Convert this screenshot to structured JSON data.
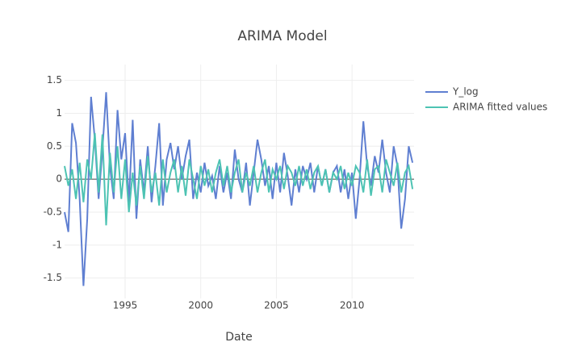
{
  "chart_data": {
    "type": "line",
    "title": "ARIMA Model",
    "x_label": "Date",
    "x": [
      1991.0,
      1991.25,
      1991.5,
      1991.75,
      1992.0,
      1992.25,
      1992.5,
      1992.75,
      1993.0,
      1993.25,
      1993.5,
      1993.75,
      1994.0,
      1994.25,
      1994.5,
      1994.75,
      1995.0,
      1995.25,
      1995.5,
      1995.75,
      1996.0,
      1996.25,
      1996.5,
      1996.75,
      1997.0,
      1997.25,
      1997.5,
      1997.75,
      1998.0,
      1998.25,
      1998.5,
      1998.75,
      1999.0,
      1999.25,
      1999.5,
      1999.75,
      2000.0,
      2000.25,
      2000.5,
      2000.75,
      2001.0,
      2001.25,
      2001.5,
      2001.75,
      2002.0,
      2002.25,
      2002.5,
      2002.75,
      2003.0,
      2003.25,
      2003.5,
      2003.75,
      2004.0,
      2004.25,
      2004.5,
      2004.75,
      2005.0,
      2005.25,
      2005.5,
      2005.75,
      2006.0,
      2006.25,
      2006.5,
      2006.75,
      2007.0,
      2007.25,
      2007.5,
      2007.75,
      2008.0,
      2008.25,
      2008.5,
      2008.75,
      2009.0,
      2009.25,
      2009.5,
      2009.75,
      2010.0,
      2010.25,
      2010.5,
      2010.75,
      2011.0,
      2011.25,
      2011.5,
      2011.75,
      2012.0,
      2012.25,
      2012.5,
      2012.75,
      2013.0,
      2013.25,
      2013.5,
      2013.75,
      2014.0
    ],
    "series": [
      {
        "name": "Y_log",
        "color": "#5f7fd1",
        "values": [
          -0.5,
          -0.8,
          0.85,
          0.55,
          -0.3,
          -1.62,
          -0.6,
          1.25,
          0.6,
          -0.3,
          0.45,
          1.32,
          0.2,
          -0.3,
          1.05,
          0.3,
          0.7,
          -0.35,
          0.9,
          -0.6,
          0.3,
          -0.2,
          0.5,
          -0.35,
          0.2,
          0.85,
          -0.4,
          0.3,
          0.55,
          0.15,
          0.5,
          0.0,
          0.35,
          0.6,
          -0.3,
          0.1,
          -0.2,
          0.25,
          -0.1,
          0.05,
          -0.3,
          0.2,
          -0.2,
          0.1,
          -0.3,
          0.45,
          0.0,
          -0.2,
          0.25,
          -0.4,
          0.1,
          0.6,
          0.3,
          -0.1,
          0.2,
          -0.3,
          0.25,
          -0.2,
          0.4,
          0.05,
          -0.4,
          0.15,
          -0.2,
          0.2,
          0.0,
          0.25,
          -0.2,
          0.2,
          -0.1,
          0.15,
          -0.2,
          0.1,
          0.2,
          -0.2,
          0.15,
          -0.3,
          0.1,
          -0.6,
          0.0,
          0.88,
          0.2,
          -0.1,
          0.35,
          0.1,
          0.6,
          0.1,
          -0.2,
          0.5,
          0.2,
          -0.75,
          -0.3,
          0.5,
          0.25
        ]
      },
      {
        "name": "ARIMA fitted values",
        "color": "#4dc3b3",
        "values": [
          0.2,
          -0.1,
          0.15,
          -0.3,
          0.25,
          -0.35,
          0.3,
          0.0,
          0.7,
          -0.2,
          0.68,
          -0.7,
          0.4,
          -0.2,
          0.5,
          -0.3,
          0.3,
          -0.5,
          0.1,
          -0.4,
          0.2,
          -0.3,
          0.35,
          -0.2,
          0.1,
          -0.4,
          0.3,
          -0.2,
          0.1,
          0.3,
          -0.2,
          0.2,
          -0.25,
          0.3,
          0.0,
          -0.3,
          0.2,
          -0.1,
          0.15,
          -0.2,
          0.1,
          0.3,
          -0.1,
          0.2,
          -0.2,
          0.1,
          0.3,
          -0.2,
          0.1,
          -0.1,
          0.2,
          -0.2,
          0.1,
          0.3,
          -0.2,
          0.15,
          0.0,
          0.2,
          -0.15,
          0.2,
          0.1,
          -0.1,
          0.2,
          -0.1,
          0.15,
          -0.15,
          0.1,
          0.2,
          -0.1,
          0.15,
          -0.2,
          0.1,
          0.0,
          0.2,
          -0.15,
          0.1,
          -0.1,
          0.2,
          0.1,
          -0.2,
          0.3,
          -0.25,
          0.15,
          0.2,
          -0.2,
          0.3,
          0.1,
          -0.1,
          0.25,
          -0.2,
          0.1,
          0.2,
          -0.15
        ]
      }
    ],
    "xlim": [
      1991.0,
      2014.1
    ],
    "xticks": [
      1995,
      2000,
      2005,
      2010
    ],
    "ylim": [
      -1.81,
      1.74
    ],
    "yticks": [
      -1.5,
      -1,
      -0.5,
      0,
      0.5,
      1,
      1.5
    ],
    "grid": true
  }
}
